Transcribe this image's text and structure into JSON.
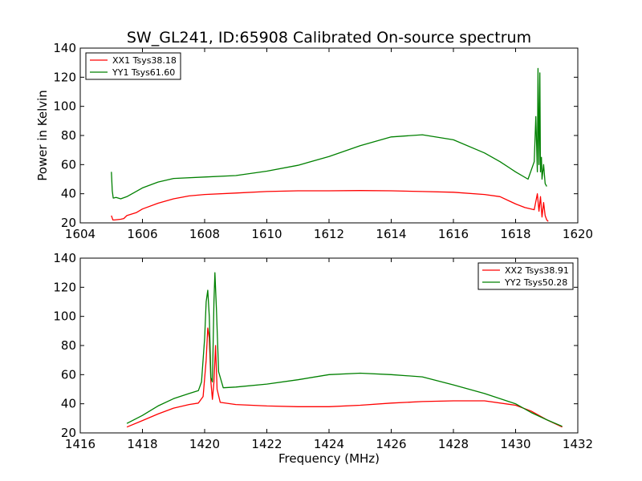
{
  "figure": {
    "title": "SW_GL241, ID:65908 Calibrated On-source spectrum",
    "ylabel": "Power in Kelvin",
    "xlabel": "Frequency (MHz)"
  },
  "chart_data": [
    {
      "type": "line",
      "title": "SW_GL241, ID:65908 Calibrated On-source spectrum",
      "xlabel": "",
      "ylabel": "Power in Kelvin",
      "xlim": [
        1604,
        1620
      ],
      "ylim": [
        20,
        140
      ],
      "xticks": [
        1604,
        1606,
        1608,
        1610,
        1612,
        1614,
        1616,
        1618,
        1620
      ],
      "yticks": [
        20,
        40,
        60,
        80,
        100,
        120,
        140
      ],
      "legend_position": "top-left",
      "series": [
        {
          "name": "XX1 Tsys38.18",
          "color": "#ff0000",
          "x": [
            1605.0,
            1605.05,
            1605.1,
            1605.3,
            1605.4,
            1605.5,
            1605.8,
            1606.0,
            1606.5,
            1607.0,
            1607.5,
            1608.0,
            1609.0,
            1610.0,
            1611.0,
            1612.0,
            1613.0,
            1614.0,
            1615.0,
            1616.0,
            1617.0,
            1617.5,
            1618.0,
            1618.3,
            1618.6,
            1618.7,
            1618.75,
            1618.8,
            1618.85,
            1618.9,
            1618.95,
            1619.0,
            1619.05
          ],
          "y": [
            25,
            22,
            22,
            22.5,
            23,
            25,
            27,
            29.5,
            33.5,
            36.5,
            38.5,
            39.5,
            40.5,
            41.5,
            42,
            42,
            42.2,
            42,
            41.5,
            41,
            39.5,
            38,
            33,
            30.5,
            29,
            40,
            28,
            38,
            24,
            34,
            25,
            22,
            21
          ]
        },
        {
          "name": "YY1 Tsys61.60",
          "color": "#008000",
          "x": [
            1605.0,
            1605.03,
            1605.06,
            1605.15,
            1605.3,
            1605.5,
            1606.0,
            1606.5,
            1607.0,
            1608.0,
            1609.0,
            1610.0,
            1611.0,
            1612.0,
            1613.0,
            1614.0,
            1615.0,
            1616.0,
            1617.0,
            1617.5,
            1618.0,
            1618.4,
            1618.6,
            1618.65,
            1618.7,
            1618.72,
            1618.75,
            1618.78,
            1618.8,
            1618.83,
            1618.85,
            1618.9,
            1618.95,
            1619.0
          ],
          "y": [
            55,
            42,
            37,
            37.5,
            36.5,
            38,
            44,
            48,
            50.5,
            51.5,
            52.5,
            55.5,
            59.5,
            65.5,
            73,
            79,
            80.5,
            77,
            68,
            62,
            55,
            50,
            62,
            93,
            55,
            126,
            60,
            123,
            55,
            65,
            50,
            60,
            47,
            45
          ]
        }
      ]
    },
    {
      "type": "line",
      "title": "",
      "xlabel": "Frequency (MHz)",
      "ylabel": "",
      "xlim": [
        1416,
        1432
      ],
      "ylim": [
        20,
        140
      ],
      "xticks": [
        1416,
        1418,
        1420,
        1422,
        1424,
        1426,
        1428,
        1430,
        1432
      ],
      "yticks": [
        20,
        40,
        60,
        80,
        100,
        120,
        140
      ],
      "legend_position": "top-right",
      "series": [
        {
          "name": "XX2 Tsys38.91",
          "color": "#ff0000",
          "x": [
            1417.5,
            1418.0,
            1418.5,
            1419.0,
            1419.5,
            1419.8,
            1419.95,
            1420.05,
            1420.1,
            1420.15,
            1420.2,
            1420.25,
            1420.3,
            1420.35,
            1420.4,
            1420.5,
            1421.0,
            1422.0,
            1423.0,
            1424.0,
            1425.0,
            1426.0,
            1427.0,
            1428.0,
            1429.0,
            1430.0,
            1430.5,
            1431.0,
            1431.5
          ],
          "y": [
            24,
            28.5,
            33,
            37,
            39.5,
            40.5,
            45,
            70,
            92,
            85,
            55,
            43,
            55,
            80,
            50,
            41,
            39.5,
            38.5,
            38,
            38,
            39,
            40.5,
            41.5,
            42,
            42,
            39,
            35,
            29,
            24
          ]
        },
        {
          "name": "YY2 Tsys50.28",
          "color": "#008000",
          "x": [
            1417.5,
            1418.0,
            1418.5,
            1419.0,
            1419.5,
            1419.8,
            1419.9,
            1420.0,
            1420.05,
            1420.1,
            1420.15,
            1420.2,
            1420.25,
            1420.3,
            1420.33,
            1420.38,
            1420.45,
            1420.6,
            1421.0,
            1422.0,
            1423.0,
            1424.0,
            1425.0,
            1426.0,
            1427.0,
            1428.0,
            1429.0,
            1430.0,
            1430.5,
            1431.0,
            1431.5
          ],
          "y": [
            26.5,
            32,
            38.5,
            43.5,
            47,
            49,
            55,
            85,
            110,
            118,
            100,
            58,
            55,
            110,
            130,
            105,
            62,
            51,
            51.5,
            53.5,
            56.5,
            60,
            61,
            60,
            58.5,
            53,
            47,
            40,
            34,
            29,
            24.5
          ]
        }
      ]
    }
  ]
}
